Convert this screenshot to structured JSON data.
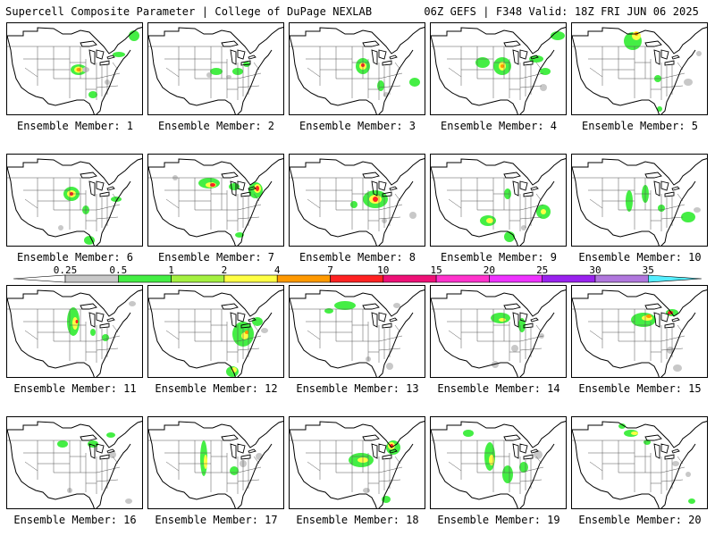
{
  "header": {
    "left": "Supercell Composite Parameter | College of DuPage NEXLAB",
    "right": "06Z GEFS | F348 Valid: 18Z FRI JUN 06 2025"
  },
  "members": [
    {
      "label": "Ensemble Member: 1"
    },
    {
      "label": "Ensemble Member: 2"
    },
    {
      "label": "Ensemble Member: 3"
    },
    {
      "label": "Ensemble Member: 4"
    },
    {
      "label": "Ensemble Member: 5"
    },
    {
      "label": "Ensemble Member: 6"
    },
    {
      "label": "Ensemble Member: 7"
    },
    {
      "label": "Ensemble Member: 8"
    },
    {
      "label": "Ensemble Member: 9"
    },
    {
      "label": "Ensemble Member: 10"
    },
    {
      "label": "Ensemble Member: 11"
    },
    {
      "label": "Ensemble Member: 12"
    },
    {
      "label": "Ensemble Member: 13"
    },
    {
      "label": "Ensemble Member: 14"
    },
    {
      "label": "Ensemble Member: 15"
    },
    {
      "label": "Ensemble Member: 16"
    },
    {
      "label": "Ensemble Member: 17"
    },
    {
      "label": "Ensemble Member: 18"
    },
    {
      "label": "Ensemble Member: 19"
    },
    {
      "label": "Ensemble Member: 20"
    }
  ],
  "colorbar": {
    "thresholds": [
      "0.25",
      "0.5",
      "1",
      "2",
      "4",
      "7",
      "10",
      "15",
      "20",
      "25",
      "30",
      "35"
    ],
    "colors": [
      "#c8c8c8",
      "#44ee44",
      "#a4f040",
      "#ffff44",
      "#ff9900",
      "#ff2222",
      "#ee1177",
      "#ff33cc",
      "#ee33ff",
      "#9922ee",
      "#b077dd",
      "#55eeff"
    ]
  }
}
